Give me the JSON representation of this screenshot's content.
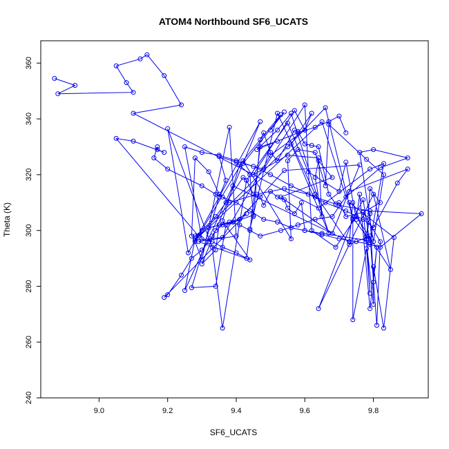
{
  "chart_data": {
    "type": "line",
    "title": "ATOM4 Northbound SF6_UCATS",
    "xlabel": "SF6_UCATS",
    "ylabel": "Theta (K)",
    "xlim": [
      8.83,
      9.96
    ],
    "ylim": [
      240,
      368
    ],
    "x_ticks": [
      "9.0",
      "9.2",
      "9.4",
      "9.6",
      "9.8"
    ],
    "y_ticks": [
      "240",
      "260",
      "280",
      "300",
      "320",
      "340",
      "360"
    ],
    "grid": false,
    "legend": "none",
    "colors": {
      "series": "#0000ee",
      "axis": "#000000"
    },
    "series": [
      {
        "points": [
          [
            8.87,
            354.5
          ],
          [
            8.93,
            352
          ],
          [
            8.88,
            349
          ],
          [
            9.1,
            349.5
          ],
          [
            9.08,
            353
          ],
          [
            9.05,
            359
          ],
          [
            9.12,
            361.5
          ],
          [
            9.14,
            363
          ],
          [
            9.19,
            355.5
          ],
          [
            9.24,
            345
          ],
          [
            9.1,
            342
          ],
          [
            9.64,
            308
          ],
          [
            9.79,
            322
          ],
          [
            9.83,
            324
          ],
          [
            9.79,
            295.5
          ],
          [
            9.77,
            311
          ],
          [
            9.74,
            304
          ],
          [
            9.66,
            344
          ],
          [
            9.55,
            330
          ],
          [
            9.28,
            297
          ],
          [
            9.25,
            278.5
          ],
          [
            9.39,
            316
          ],
          [
            9.73,
            296
          ],
          [
            9.74,
            310
          ],
          [
            9.78,
            297
          ],
          [
            9.79,
            306
          ],
          [
            9.8,
            281.5
          ],
          [
            9.81,
            294
          ],
          [
            9.79,
            272
          ],
          [
            9.76,
            313
          ],
          [
            9.75,
            304
          ],
          [
            9.72,
            324.5
          ],
          [
            9.7,
            314
          ],
          [
            9.61,
            321
          ],
          [
            9.55,
            338.5
          ],
          [
            9.43,
            318
          ],
          [
            9.36,
            265
          ],
          [
            9.33,
            294
          ],
          [
            9.2,
            336.5
          ],
          [
            9.26,
            292
          ],
          [
            9.35,
            312
          ],
          [
            9.27,
            279.5
          ],
          [
            9.34,
            280
          ],
          [
            9.37,
            302
          ],
          [
            9.45,
            305.5
          ],
          [
            9.44,
            300.5
          ],
          [
            9.52,
            342
          ],
          [
            9.63,
            313
          ],
          [
            9.73,
            295
          ],
          [
            9.79,
            298
          ],
          [
            9.81,
            266
          ],
          [
            9.82,
            296
          ],
          [
            9.77,
            306.5
          ],
          [
            9.8,
            273.5
          ],
          [
            9.8,
            287
          ],
          [
            9.83,
            265
          ],
          [
            9.86,
            297.5
          ],
          [
            9.73,
            310
          ],
          [
            9.74,
            304.5
          ],
          [
            9.78,
            298
          ],
          [
            9.79,
            277.5
          ],
          [
            9.78,
            293.5
          ],
          [
            9.74,
            268
          ],
          [
            9.74,
            304
          ],
          [
            9.64,
            272
          ],
          [
            9.8,
            313
          ],
          [
            9.85,
            286
          ],
          [
            9.75,
            305
          ],
          [
            9.69,
            294
          ],
          [
            9.62,
            300
          ],
          [
            9.6,
            345
          ],
          [
            9.48,
            322
          ],
          [
            9.42,
            324
          ],
          [
            9.54,
            342.5
          ],
          [
            9.5,
            336
          ],
          [
            9.53,
            341.5
          ],
          [
            9.41,
            323.5
          ],
          [
            9.36,
            303.5
          ],
          [
            9.44,
            289.5
          ],
          [
            9.29,
            296
          ],
          [
            9.4,
            298
          ],
          [
            9.38,
            337
          ],
          [
            9.3,
            289.5
          ],
          [
            9.28,
            296
          ],
          [
            9.42,
            325
          ],
          [
            9.56,
            297
          ],
          [
            9.55,
            325
          ],
          [
            9.58,
            329
          ],
          [
            9.63,
            328
          ],
          [
            9.66,
            316
          ],
          [
            9.67,
            338
          ],
          [
            9.78,
            325.5
          ],
          [
            9.83,
            320
          ],
          [
            9.8,
            296
          ],
          [
            9.76,
            328
          ],
          [
            9.8,
            329
          ],
          [
            9.9,
            326
          ],
          [
            9.82,
            322.5
          ],
          [
            9.72,
            312
          ],
          [
            9.65,
            339
          ],
          [
            9.28,
            296.5
          ],
          [
            9.36,
            297.5
          ],
          [
            9.5,
            327
          ],
          [
            9.6,
            336
          ],
          [
            9.62,
            342
          ],
          [
            9.56,
            331
          ],
          [
            9.67,
            299
          ],
          [
            9.56,
            342
          ],
          [
            9.52,
            336
          ],
          [
            9.46,
            329
          ],
          [
            9.6,
            336
          ],
          [
            9.57,
            343
          ],
          [
            9.45,
            320
          ],
          [
            9.55,
            327
          ],
          [
            9.64,
            326
          ],
          [
            9.65,
            305
          ],
          [
            9.63,
            319
          ],
          [
            9.64,
            325
          ],
          [
            9.68,
            319
          ],
          [
            9.53,
            312
          ],
          [
            9.68,
            299
          ],
          [
            9.76,
            323.5
          ],
          [
            9.54,
            321.5
          ],
          [
            9.41,
            304
          ],
          [
            9.35,
            302
          ],
          [
            9.34,
            293
          ],
          [
            9.3,
            288
          ],
          [
            9.47,
            339
          ],
          [
            9.35,
            312
          ],
          [
            9.37,
            318
          ],
          [
            9.35,
            326.5
          ],
          [
            9.4,
            324.5
          ],
          [
            9.44,
            320
          ],
          [
            9.45,
            305
          ],
          [
            9.47,
            332.5
          ],
          [
            9.48,
            335
          ],
          [
            9.5,
            328
          ],
          [
            9.52,
            325
          ],
          [
            9.57,
            336
          ],
          [
            9.58,
            335.5
          ],
          [
            9.6,
            331
          ],
          [
            9.62,
            330.5
          ],
          [
            9.64,
            330
          ],
          [
            9.67,
            313
          ],
          [
            9.69,
            309.5
          ],
          [
            9.7,
            310
          ],
          [
            9.72,
            305
          ],
          [
            9.77,
            306.5
          ],
          [
            9.82,
            310
          ],
          [
            9.79,
            315
          ],
          [
            9.78,
            296.5
          ],
          [
            9.65,
            299
          ],
          [
            9.6,
            300
          ],
          [
            9.59,
            310
          ],
          [
            9.57,
            306
          ],
          [
            9.55,
            308
          ],
          [
            9.54,
            311
          ],
          [
            9.52,
            312
          ],
          [
            9.5,
            314
          ],
          [
            9.48,
            309
          ],
          [
            9.47,
            312
          ],
          [
            9.45,
            313
          ],
          [
            9.43,
            318
          ],
          [
            9.42,
            319
          ],
          [
            9.37,
            310
          ],
          [
            9.34,
            305
          ],
          [
            9.3,
            300
          ],
          [
            9.28,
            298
          ],
          [
            9.27,
            298
          ],
          [
            9.28,
            326
          ],
          [
            9.32,
            321
          ],
          [
            9.35,
            313
          ],
          [
            9.38,
            310
          ],
          [
            9.46,
            313
          ],
          [
            9.54,
            315
          ],
          [
            9.61,
            313
          ],
          [
            9.66,
            310
          ],
          [
            9.72,
            307
          ],
          [
            9.77,
            304
          ],
          [
            9.8,
            301
          ],
          [
            9.87,
            317
          ],
          [
            9.9,
            322
          ],
          [
            9.73,
            314
          ],
          [
            9.68,
            305
          ],
          [
            9.63,
            304
          ],
          [
            9.58,
            302
          ],
          [
            9.53,
            300
          ],
          [
            9.47,
            298
          ],
          [
            9.44,
            300
          ],
          [
            9.41,
            302
          ],
          [
            9.38,
            303
          ],
          [
            9.36,
            302
          ],
          [
            9.34,
            300
          ],
          [
            9.33,
            298
          ],
          [
            9.32,
            296
          ],
          [
            9.3,
            293
          ],
          [
            9.27,
            290
          ],
          [
            9.24,
            284
          ],
          [
            9.2,
            277
          ],
          [
            9.19,
            276
          ],
          [
            9.43,
            306
          ],
          [
            9.39,
            303
          ],
          [
            9.32,
            301
          ],
          [
            9.29,
            298
          ],
          [
            9.05,
            333
          ],
          [
            9.1,
            332
          ],
          [
            9.19,
            328
          ],
          [
            9.17,
            329
          ],
          [
            9.17,
            330
          ],
          [
            9.16,
            326
          ],
          [
            9.2,
            322
          ],
          [
            9.3,
            316
          ],
          [
            9.34,
            313
          ],
          [
            9.36,
            312
          ],
          [
            9.4,
            310
          ],
          [
            9.44,
            307
          ],
          [
            9.48,
            304
          ],
          [
            9.52,
            303
          ],
          [
            9.56,
            301
          ],
          [
            9.6,
            300
          ],
          [
            9.65,
            298.5
          ],
          [
            9.7,
            297
          ],
          [
            9.75,
            296
          ],
          [
            9.79,
            295
          ],
          [
            9.82,
            294
          ],
          [
            9.94,
            306
          ],
          [
            9.79,
            307
          ],
          [
            9.7,
            309
          ],
          [
            9.63,
            312
          ],
          [
            9.56,
            316
          ],
          [
            9.5,
            320
          ],
          [
            9.45,
            323
          ],
          [
            9.4,
            325
          ],
          [
            9.35,
            327
          ],
          [
            9.3,
            328
          ],
          [
            9.25,
            330
          ],
          [
            9.3,
            297
          ],
          [
            9.33,
            296
          ],
          [
            9.36,
            294
          ],
          [
            9.4,
            292
          ],
          [
            9.43,
            290
          ],
          [
            9.47,
            330
          ],
          [
            9.52,
            332
          ],
          [
            9.58,
            335
          ],
          [
            9.63,
            337
          ],
          [
            9.67,
            339
          ],
          [
            9.7,
            341
          ],
          [
            9.72,
            335
          ]
        ]
      }
    ]
  }
}
